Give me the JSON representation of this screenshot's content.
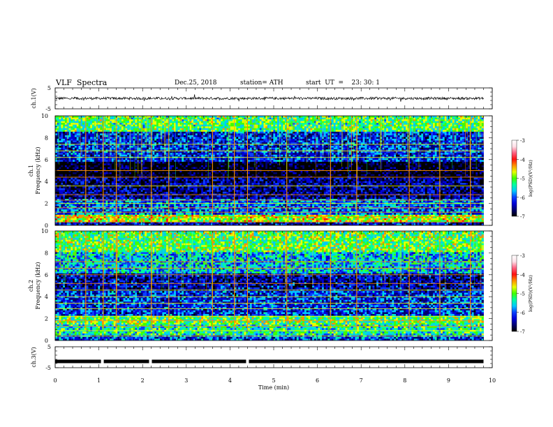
{
  "header": {
    "title": "VLF  Spectra",
    "date": "Dec.25, 2018",
    "station": "station= ATH",
    "start": "start  UT  =    23: 30: 1"
  },
  "chart_data": [
    {
      "type": "line",
      "name": "ch1-waveform",
      "ylabel": "ch.1(V)",
      "ylim": [
        -5,
        5
      ],
      "yticks": [
        "5",
        "-5"
      ],
      "xlim": [
        0,
        10
      ],
      "baseline": 0,
      "color": "#000000",
      "values_note_visible": "",
      "noise_amplitude": 0.6,
      "x_end": 9.8
    },
    {
      "type": "heatmap",
      "name": "ch1-spectrogram",
      "ylabel_top": "ch.1",
      "ylabel": "Frequency  (kHz)",
      "ylim": [
        0,
        10
      ],
      "yticks": [
        "0",
        "2",
        "4",
        "6",
        "8",
        "10"
      ],
      "xlim": [
        0,
        10
      ],
      "x_end": 9.8,
      "colorbar": {
        "label": "log(PSD)(V²/Hz)",
        "min": -7,
        "max": -3,
        "ticks": [
          "-3",
          "-4",
          "-5",
          "-6",
          "-7"
        ]
      },
      "bands": [
        {
          "f0": 0.0,
          "f1": 0.4,
          "level": -6.2
        },
        {
          "f0": 0.4,
          "f1": 1.0,
          "level": -4.6
        },
        {
          "f0": 1.0,
          "f1": 2.5,
          "level": -5.8
        },
        {
          "f0": 2.5,
          "f1": 4.3,
          "level": -6.4
        },
        {
          "f0": 4.3,
          "f1": 5.8,
          "level": -6.9
        },
        {
          "f0": 5.8,
          "f1": 8.5,
          "level": -6.0
        },
        {
          "f0": 8.5,
          "f1": 10.0,
          "level": -5.0
        }
      ],
      "lines_khz": [
        0.3,
        0.8,
        1.2,
        1.6,
        2.0,
        2.3,
        2.8,
        3.6,
        4.4,
        5.0,
        6.2,
        6.8,
        7.4
      ],
      "sferics_min": [
        0.7,
        1.1,
        1.4,
        2.2,
        2.6,
        3.6,
        4.1,
        4.4,
        5.3,
        6.3,
        6.9,
        8.1,
        8.8,
        9.5
      ]
    },
    {
      "type": "heatmap",
      "name": "ch2-spectrogram",
      "ylabel_top": "ch.2",
      "ylabel": "Frequency  (kHz)",
      "ylim": [
        0,
        10
      ],
      "yticks": [
        "0",
        "2",
        "4",
        "6",
        "8",
        "10"
      ],
      "xlim": [
        0,
        10
      ],
      "x_end": 9.8,
      "colorbar": {
        "label": "log(PSD)(V²/Hz)",
        "min": -7,
        "max": -3,
        "ticks": [
          "-3",
          "-4",
          "-5",
          "-6",
          "-7"
        ]
      },
      "bands": [
        {
          "f0": 0.0,
          "f1": 0.5,
          "level": -5.9
        },
        {
          "f0": 0.5,
          "f1": 1.5,
          "level": -5.2
        },
        {
          "f0": 1.5,
          "f1": 2.3,
          "level": -4.9
        },
        {
          "f0": 2.3,
          "f1": 4.5,
          "level": -6.0
        },
        {
          "f0": 4.5,
          "f1": 6.2,
          "level": -6.3
        },
        {
          "f0": 6.2,
          "f1": 8.0,
          "level": -5.5
        },
        {
          "f0": 8.0,
          "f1": 10.0,
          "level": -4.9
        }
      ],
      "lines_khz": [
        0.4,
        0.9,
        1.3,
        1.8,
        2.2,
        2.9,
        3.4,
        4.0,
        4.6,
        5.2,
        6.0,
        6.6,
        7.2
      ],
      "sferics_min": [
        0.7,
        1.1,
        1.4,
        2.2,
        2.6,
        3.6,
        4.1,
        4.4,
        5.3,
        6.3,
        6.9,
        8.1,
        8.8,
        9.5
      ]
    },
    {
      "type": "line",
      "name": "ch3-timecode",
      "ylabel": "ch.3(V)",
      "ylim": [
        -5,
        5
      ],
      "yticks": [
        "5",
        "-5"
      ],
      "xlim": [
        0,
        10
      ],
      "xticks": [
        "0",
        "1",
        "2",
        "3",
        "4",
        "5",
        "6",
        "7",
        "8",
        "9",
        "10"
      ],
      "xlabel": "Time  (min)",
      "level": -2,
      "gaps_min": [
        1.08,
        2.18,
        4.4
      ],
      "x_end": 9.8
    }
  ],
  "colors": {
    "colormap": [
      "#000000",
      "#00006e",
      "#0000d8",
      "#0a40ff",
      "#00c8ff",
      "#00ffa0",
      "#40ff00",
      "#e8ff00",
      "#ff9000",
      "#ff1010",
      "#ff6080",
      "#ffe0e8",
      "#ffffff"
    ]
  }
}
